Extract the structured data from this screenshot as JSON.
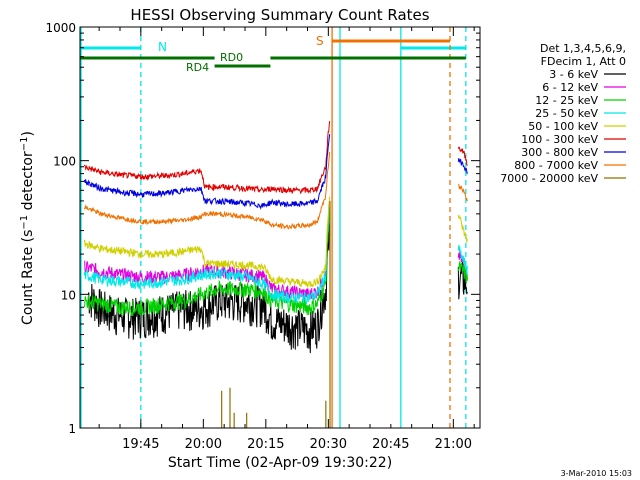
{
  "chart_data": {
    "type": "line",
    "title": "HESSI Observing Summary Count Rates",
    "xlabel": "Start Time (02-Apr-09 19:30:22)",
    "ylabel": "Count Rate (s⁻¹ detector⁻¹)",
    "yscale": "log",
    "ylim": [
      1,
      1000
    ],
    "xlim_minutes_after_19_30_22": [
      0,
      96
    ],
    "x_ticks": [
      {
        "label": "19:45",
        "t": 14.6
      },
      {
        "label": "20:00",
        "t": 29.6
      },
      {
        "label": "20:15",
        "t": 44.6
      },
      {
        "label": "20:30",
        "t": 59.6
      },
      {
        "label": "20:45",
        "t": 74.6
      },
      {
        "label": "21:00",
        "t": 89.6
      }
    ],
    "y_ticks": [
      {
        "label": "1",
        "v": 1
      },
      {
        "label": "10",
        "v": 10
      },
      {
        "label": "100",
        "v": 100
      },
      {
        "label": "1000",
        "v": 1000
      }
    ],
    "legend": {
      "placement": "right",
      "header": [
        "Det 1,3,4,5,6,9,",
        "FDecim 1, Att 0"
      ],
      "entries": [
        {
          "label": "3 - 6 keV",
          "color": "#000000"
        },
        {
          "label": "6 - 12 keV",
          "color": "#e000e0"
        },
        {
          "label": "12 - 25 keV",
          "color": "#00d000"
        },
        {
          "label": "25 - 50 keV",
          "color": "#00e8e8"
        },
        {
          "label": "50 - 100 keV",
          "color": "#d0d000"
        },
        {
          "label": "100 - 300 keV",
          "color": "#e00000"
        },
        {
          "label": "300 - 800 keV",
          "color": "#0000e0"
        },
        {
          "label": "800 - 7000 keV",
          "color": "#f07000"
        },
        {
          "label": "7000 - 20000 keV",
          "color": "#907000"
        }
      ]
    },
    "series": [
      {
        "name": "3 - 6 keV",
        "color": "#000000",
        "noise": 0.35,
        "points": [
          [
            2,
            10
          ],
          [
            5,
            8
          ],
          [
            10,
            7
          ],
          [
            15,
            7
          ],
          [
            20,
            7.5
          ],
          [
            25,
            8
          ],
          [
            29,
            8
          ],
          [
            33,
            9
          ],
          [
            40,
            9
          ],
          [
            44,
            8.5
          ],
          [
            46,
            6.5
          ],
          [
            50,
            6
          ],
          [
            55,
            5.5
          ],
          [
            57,
            6
          ],
          [
            59,
            11
          ],
          [
            60,
            30
          ]
        ],
        "gaps_after": [
          [
            60,
            90.7
          ]
        ],
        "points2": [
          [
            90.8,
            14
          ],
          [
            92,
            13
          ],
          [
            93,
            12
          ]
        ]
      },
      {
        "name": "6 - 12 keV",
        "color": "#e000e0",
        "noise": 0.12,
        "points": [
          [
            1,
            16
          ],
          [
            5,
            15
          ],
          [
            10,
            14
          ],
          [
            15,
            13.5
          ],
          [
            20,
            13.5
          ],
          [
            25,
            14
          ],
          [
            29,
            15
          ],
          [
            33,
            15
          ],
          [
            40,
            14
          ],
          [
            44,
            13.5
          ],
          [
            46,
            11
          ],
          [
            50,
            10.5
          ],
          [
            55,
            10
          ],
          [
            57,
            10.5
          ],
          [
            59,
            14
          ],
          [
            60,
            40
          ]
        ],
        "points2": [
          [
            90.8,
            20
          ],
          [
            92,
            17
          ],
          [
            93,
            14
          ]
        ]
      },
      {
        "name": "12 - 25 keV",
        "color": "#00d000",
        "noise": 0.14,
        "points": [
          [
            1,
            9
          ],
          [
            5,
            8.5
          ],
          [
            10,
            8
          ],
          [
            15,
            8
          ],
          [
            20,
            8.5
          ],
          [
            25,
            9
          ],
          [
            29,
            10
          ],
          [
            33,
            11
          ],
          [
            40,
            11
          ],
          [
            44,
            10.5
          ],
          [
            46,
            9
          ],
          [
            50,
            8.5
          ],
          [
            55,
            8
          ],
          [
            57,
            8.5
          ],
          [
            59,
            12
          ],
          [
            60,
            45
          ]
        ],
        "points2": [
          [
            90.8,
            16
          ],
          [
            92,
            15
          ],
          [
            93,
            13
          ]
        ]
      },
      {
        "name": "25 - 50 keV",
        "color": "#00e8e8",
        "noise": 0.1,
        "points": [
          [
            1,
            14
          ],
          [
            5,
            13
          ],
          [
            10,
            12.5
          ],
          [
            15,
            12
          ],
          [
            20,
            12.5
          ],
          [
            25,
            13
          ],
          [
            29,
            14
          ],
          [
            33,
            14.5
          ],
          [
            40,
            13.5
          ],
          [
            44,
            12
          ],
          [
            46,
            10
          ],
          [
            50,
            9.5
          ],
          [
            55,
            9.5
          ],
          [
            57,
            10
          ],
          [
            59,
            14
          ],
          [
            60,
            50
          ]
        ],
        "points2": [
          [
            90.8,
            22
          ],
          [
            92,
            18
          ],
          [
            93,
            15
          ]
        ]
      },
      {
        "name": "50 - 100 keV",
        "color": "#d0d000",
        "noise": 0.07,
        "points": [
          [
            1,
            24
          ],
          [
            5,
            22
          ],
          [
            10,
            21
          ],
          [
            15,
            20
          ],
          [
            20,
            20
          ],
          [
            25,
            21
          ],
          [
            29,
            22
          ],
          [
            30,
            17
          ],
          [
            33,
            17
          ],
          [
            40,
            16.5
          ],
          [
            44,
            16
          ],
          [
            46,
            13
          ],
          [
            50,
            12.5
          ],
          [
            55,
            12
          ],
          [
            57,
            12.5
          ],
          [
            59,
            16
          ],
          [
            60,
            60
          ]
        ],
        "points2": [
          [
            90.8,
            40
          ],
          [
            92,
            30
          ],
          [
            93,
            25
          ]
        ]
      },
      {
        "name": "100 - 300 keV",
        "color": "#e00000",
        "noise": 0.05,
        "points": [
          [
            1,
            90
          ],
          [
            5,
            82
          ],
          [
            10,
            78
          ],
          [
            15,
            76
          ],
          [
            20,
            77
          ],
          [
            25,
            80
          ],
          [
            29,
            85
          ],
          [
            30,
            63
          ],
          [
            33,
            64
          ],
          [
            40,
            62
          ],
          [
            44,
            60
          ],
          [
            46,
            62
          ],
          [
            50,
            60
          ],
          [
            55,
            60
          ],
          [
            57,
            62
          ],
          [
            59,
            90
          ],
          [
            60,
            210
          ]
        ],
        "points2": [
          [
            90.8,
            125
          ],
          [
            92,
            118
          ],
          [
            93,
            95
          ]
        ]
      },
      {
        "name": "300 - 800 keV",
        "color": "#0000e0",
        "noise": 0.05,
        "points": [
          [
            1,
            70
          ],
          [
            5,
            62
          ],
          [
            10,
            58
          ],
          [
            15,
            56
          ],
          [
            20,
            57
          ],
          [
            25,
            60
          ],
          [
            29,
            62
          ],
          [
            30,
            50
          ],
          [
            33,
            50
          ],
          [
            40,
            48
          ],
          [
            44,
            46
          ],
          [
            46,
            49
          ],
          [
            50,
            47
          ],
          [
            55,
            48
          ],
          [
            57,
            50
          ],
          [
            59,
            75
          ],
          [
            60,
            170
          ]
        ],
        "points2": [
          [
            90.8,
            100
          ],
          [
            92,
            95
          ],
          [
            93,
            80
          ]
        ]
      },
      {
        "name": "800 - 7000 keV",
        "color": "#f07000",
        "noise": 0.04,
        "points": [
          [
            1,
            45
          ],
          [
            5,
            40
          ],
          [
            10,
            37
          ],
          [
            15,
            35
          ],
          [
            20,
            35
          ],
          [
            25,
            36
          ],
          [
            29,
            38
          ],
          [
            30,
            40
          ],
          [
            33,
            40
          ],
          [
            40,
            38
          ],
          [
            44,
            36
          ],
          [
            46,
            33
          ],
          [
            50,
            32
          ],
          [
            55,
            33
          ],
          [
            57,
            35
          ],
          [
            59,
            55
          ],
          [
            60,
            120
          ]
        ],
        "points2": [
          [
            90.8,
            65
          ],
          [
            92,
            60
          ],
          [
            93,
            48
          ]
        ]
      }
    ],
    "spikes_7000_20000_keV": [
      [
        34,
        1.9
      ],
      [
        36,
        2.0
      ],
      [
        37,
        1.3
      ],
      [
        40,
        1.3
      ],
      [
        59,
        1.6
      ],
      [
        60,
        50
      ]
    ],
    "annotations": {
      "night_markers": [
        "N"
      ],
      "saa_markers": [
        "S"
      ],
      "attenuator_bars": [
        "RD0",
        "RD4"
      ],
      "timestamp": "3-Mar-2010 15:03"
    }
  },
  "labels": {
    "title": "HESSI Observing Summary Count Rates",
    "xlabel": "Start Time (02-Apr-09 19:30:22)",
    "ylabel_main": "Count Rate (s",
    "ylabel_sup1": "−1",
    "ylabel_mid": " detector",
    "ylabel_sup2": "−1",
    "ylabel_end": ")",
    "night": "N",
    "saa": "S",
    "rd0": "RD0",
    "rd4": "RD4",
    "timestamp": "3-Mar-2010 15:03"
  }
}
